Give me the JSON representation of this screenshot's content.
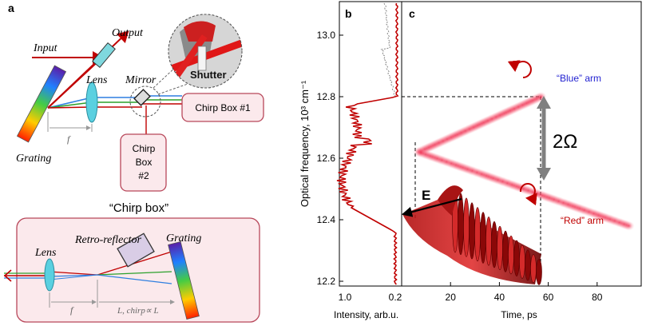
{
  "panels": {
    "a": "a",
    "b": "b",
    "c": "c"
  },
  "setup": {
    "input": "Input",
    "output": "Output",
    "lens": "Lens",
    "mirror": "Mirror",
    "grating": "Grating",
    "f": "f",
    "shutter": "Shutter",
    "chirp_box_1": "Chirp Box #1",
    "chirp_box_2_lines": [
      "Chirp",
      "Box",
      "#2"
    ]
  },
  "chirp_box": {
    "title": "“Chirp box”",
    "lens": "Lens",
    "retro": "Retro-reflector",
    "grating": "Grating",
    "f": "f",
    "l_label": "L, chirp∝ L"
  },
  "spectrum": {
    "xlabel": "Intensity, arb.u.",
    "xticks": [
      "1.0",
      "0.2"
    ]
  },
  "chart_data": {
    "type": "scatter",
    "ylabel": "Optical frequency, 10³ cm⁻¹",
    "xlabel": "Time, ps",
    "yticks": [
      "13.0",
      "12.8",
      "12.6",
      "12.4",
      "12.2"
    ],
    "xticks": [
      "20",
      "40",
      "60",
      "80"
    ],
    "ylim": [
      12.02,
      13.2
    ],
    "xlim": [
      0,
      95
    ],
    "blue_arm_label": "“Blue” arm",
    "red_arm_label": "“Red” arm",
    "two_omega": "2Ω",
    "e_label": "E",
    "blue_arm": {
      "start": [
        7,
        12.62
      ],
      "end": [
        57,
        12.8
      ]
    },
    "red_arm": {
      "start": [
        7,
        12.62
      ],
      "end": [
        93,
        12.38
      ]
    }
  },
  "colors": {
    "beam": "#c00000",
    "box_fill": "#fbe9ec",
    "box_stroke": "#b8475a",
    "arrow_gray": "#808080",
    "blue_label": "#1f1fd0"
  }
}
